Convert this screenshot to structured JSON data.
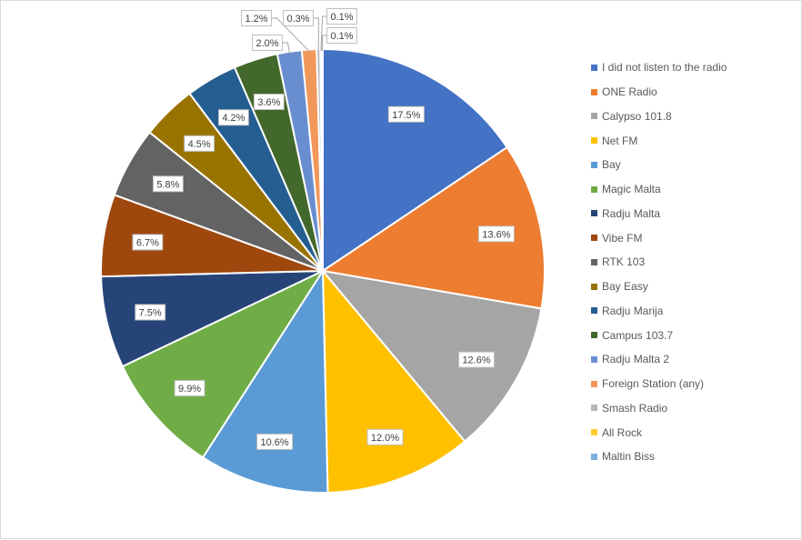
{
  "chart_data": {
    "type": "pie",
    "title": "",
    "legend_position": "right",
    "start_angle_deg": 0,
    "direction": "clockwise",
    "categories": [
      "I did not listen to the radio",
      "ONE Radio",
      "Calypso 101.8",
      "Net FM",
      "Bay",
      "Magic Malta",
      "Radju Malta",
      "Vibe FM",
      "RTK 103",
      "Bay Easy",
      "Radju Marija",
      "Campus 103.7",
      "Radju Malta 2",
      "Foreign Station (any)",
      "Smash Radio",
      "All Rock",
      "Maltin Biss"
    ],
    "values": [
      17.5,
      13.6,
      12.6,
      12.0,
      10.6,
      9.9,
      7.5,
      6.7,
      5.8,
      4.5,
      4.2,
      3.6,
      2.0,
      1.2,
      0.3,
      0.1,
      0.1
    ],
    "labels": [
      "17.5%",
      "13.6%",
      "12.6%",
      "12.0%",
      "10.6%",
      "9.9%",
      "7.5%",
      "6.7%",
      "5.8%",
      "4.5%",
      "4.2%",
      "3.6%",
      "2.0%",
      "1.2%",
      "0.3%",
      "0.1%",
      "0.1%"
    ],
    "colors": [
      "#4472c4",
      "#ed7d31",
      "#a5a5a5",
      "#ffc000",
      "#5b9bd5",
      "#70ad47",
      "#264478",
      "#9e480e",
      "#636363",
      "#997300",
      "#255e91",
      "#43682b",
      "#698ed0",
      "#f1975a",
      "#b7b7b7",
      "#ffcd33",
      "#7cafdd"
    ],
    "unit": "%"
  }
}
